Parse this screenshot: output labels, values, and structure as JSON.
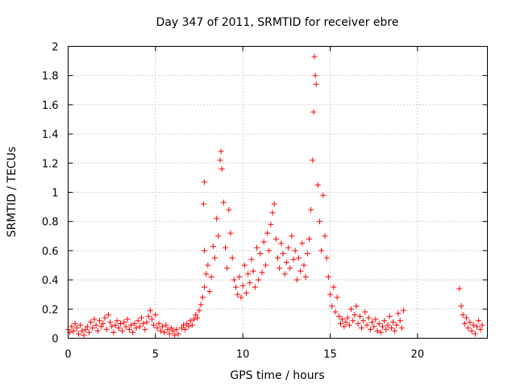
{
  "chart_data": {
    "type": "scatter",
    "title": "Day 347 of 2011, SRMTID for receiver ebre",
    "xlabel": "GPS time / hours",
    "ylabel": "SRMTID / TECUs",
    "xlim": [
      0,
      24
    ],
    "ylim": [
      0,
      2
    ],
    "xticks": [
      0,
      5,
      10,
      15,
      20
    ],
    "xtick_labels": [
      "0",
      "5",
      "10",
      "15",
      "20"
    ],
    "yticks": [
      0,
      0.2,
      0.4,
      0.6,
      0.8,
      1,
      1.2,
      1.4,
      1.6,
      1.8,
      2
    ],
    "ytick_labels": [
      "0",
      "0.2",
      "0.4",
      "0.6",
      "0.8",
      "1",
      "1.2",
      "1.4",
      "1.6",
      "1.8",
      "2"
    ],
    "grid": true,
    "marker": "plus",
    "series": [
      {
        "name": "SRMTID",
        "color": "#ff0000",
        "points": [
          [
            0.0,
            0.06
          ],
          [
            0.1,
            0.04
          ],
          [
            0.2,
            0.08
          ],
          [
            0.3,
            0.05
          ],
          [
            0.4,
            0.1
          ],
          [
            0.5,
            0.07
          ],
          [
            0.6,
            0.03
          ],
          [
            0.7,
            0.09
          ],
          [
            0.8,
            0.05
          ],
          [
            0.9,
            0.02
          ],
          [
            1.0,
            0.06
          ],
          [
            1.1,
            0.08
          ],
          [
            1.2,
            0.04
          ],
          [
            1.3,
            0.11
          ],
          [
            1.4,
            0.07
          ],
          [
            1.5,
            0.13
          ],
          [
            1.6,
            0.09
          ],
          [
            1.7,
            0.05
          ],
          [
            1.8,
            0.12
          ],
          [
            1.9,
            0.08
          ],
          [
            2.0,
            0.1
          ],
          [
            2.1,
            0.14
          ],
          [
            2.2,
            0.06
          ],
          [
            2.3,
            0.16
          ],
          [
            2.4,
            0.11
          ],
          [
            2.5,
            0.08
          ],
          [
            2.6,
            0.04
          ],
          [
            2.7,
            0.09
          ],
          [
            2.8,
            0.12
          ],
          [
            2.9,
            0.07
          ],
          [
            3.0,
            0.1
          ],
          [
            3.1,
            0.05
          ],
          [
            3.2,
            0.11
          ],
          [
            3.3,
            0.08
          ],
          [
            3.4,
            0.13
          ],
          [
            3.5,
            0.06
          ],
          [
            3.6,
            0.09
          ],
          [
            3.7,
            0.04
          ],
          [
            3.8,
            0.1
          ],
          [
            3.9,
            0.07
          ],
          [
            4.0,
            0.12
          ],
          [
            4.1,
            0.08
          ],
          [
            4.2,
            0.14
          ],
          [
            4.3,
            0.1
          ],
          [
            4.4,
            0.06
          ],
          [
            4.5,
            0.11
          ],
          [
            4.6,
            0.15
          ],
          [
            4.7,
            0.19
          ],
          [
            4.8,
            0.13
          ],
          [
            4.9,
            0.09
          ],
          [
            5.0,
            0.16
          ],
          [
            5.1,
            0.07
          ],
          [
            5.2,
            0.1
          ],
          [
            5.3,
            0.05
          ],
          [
            5.4,
            0.08
          ],
          [
            5.5,
            0.04
          ],
          [
            5.6,
            0.09
          ],
          [
            5.7,
            0.06
          ],
          [
            5.8,
            0.03
          ],
          [
            5.9,
            0.07
          ],
          [
            6.0,
            0.05
          ],
          [
            6.1,
            0.02
          ],
          [
            6.2,
            0.06
          ],
          [
            6.3,
            0.03
          ],
          [
            6.5,
            0.07
          ],
          [
            6.6,
            0.09
          ],
          [
            6.7,
            0.06
          ],
          [
            6.8,
            0.1
          ],
          [
            6.9,
            0.08
          ],
          [
            7.0,
            0.12
          ],
          [
            7.1,
            0.09
          ],
          [
            7.2,
            0.13
          ],
          [
            7.3,
            0.16
          ],
          [
            7.4,
            0.14
          ],
          [
            7.5,
            0.19
          ],
          [
            7.6,
            0.23
          ],
          [
            7.7,
            0.28
          ],
          [
            7.8,
            0.35
          ],
          [
            7.9,
            0.44
          ],
          [
            7.8,
            0.6
          ],
          [
            7.75,
            0.92
          ],
          [
            7.8,
            1.07
          ],
          [
            8.0,
            0.5
          ],
          [
            8.1,
            0.32
          ],
          [
            8.2,
            0.42
          ],
          [
            8.3,
            0.63
          ],
          [
            8.4,
            0.55
          ],
          [
            8.5,
            0.82
          ],
          [
            8.6,
            0.7
          ],
          [
            8.7,
            1.22
          ],
          [
            8.75,
            1.28
          ],
          [
            8.8,
            1.16
          ],
          [
            8.9,
            0.93
          ],
          [
            9.0,
            0.62
          ],
          [
            9.1,
            0.48
          ],
          [
            9.2,
            0.88
          ],
          [
            9.3,
            0.72
          ],
          [
            9.4,
            0.55
          ],
          [
            9.5,
            0.4
          ],
          [
            9.6,
            0.35
          ],
          [
            9.7,
            0.3
          ],
          [
            9.8,
            0.42
          ],
          [
            9.9,
            0.28
          ],
          [
            10.0,
            0.36
          ],
          [
            10.1,
            0.5
          ],
          [
            10.2,
            0.31
          ],
          [
            10.3,
            0.44
          ],
          [
            10.4,
            0.38
          ],
          [
            10.5,
            0.54
          ],
          [
            10.6,
            0.46
          ],
          [
            10.7,
            0.35
          ],
          [
            10.8,
            0.62
          ],
          [
            10.9,
            0.4
          ],
          [
            11.0,
            0.58
          ],
          [
            11.1,
            0.45
          ],
          [
            11.2,
            0.66
          ],
          [
            11.3,
            0.5
          ],
          [
            11.4,
            0.72
          ],
          [
            11.5,
            0.6
          ],
          [
            11.6,
            0.78
          ],
          [
            11.7,
            0.86
          ],
          [
            11.8,
            0.92
          ],
          [
            11.9,
            0.68
          ],
          [
            12.0,
            0.55
          ],
          [
            12.1,
            0.48
          ],
          [
            12.2,
            0.65
          ],
          [
            12.3,
            0.58
          ],
          [
            12.4,
            0.44
          ],
          [
            12.5,
            0.52
          ],
          [
            12.6,
            0.62
          ],
          [
            12.7,
            0.48
          ],
          [
            12.8,
            0.7
          ],
          [
            12.9,
            0.54
          ],
          [
            13.0,
            0.6
          ],
          [
            13.1,
            0.4
          ],
          [
            13.2,
            0.55
          ],
          [
            13.3,
            0.46
          ],
          [
            13.4,
            0.65
          ],
          [
            13.5,
            0.5
          ],
          [
            13.6,
            0.42
          ],
          [
            13.7,
            0.58
          ],
          [
            13.8,
            0.68
          ],
          [
            13.9,
            0.88
          ],
          [
            14.0,
            1.22
          ],
          [
            14.05,
            1.55
          ],
          [
            14.1,
            1.93
          ],
          [
            14.15,
            1.8
          ],
          [
            14.2,
            1.74
          ],
          [
            14.3,
            1.05
          ],
          [
            14.4,
            0.8
          ],
          [
            14.5,
            0.6
          ],
          [
            14.6,
            0.98
          ],
          [
            14.7,
            0.7
          ],
          [
            14.8,
            0.55
          ],
          [
            14.9,
            0.42
          ],
          [
            15.0,
            0.3
          ],
          [
            15.1,
            0.22
          ],
          [
            15.2,
            0.35
          ],
          [
            15.3,
            0.18
          ],
          [
            15.4,
            0.28
          ],
          [
            15.5,
            0.15
          ],
          [
            15.6,
            0.1
          ],
          [
            15.7,
            0.13
          ],
          [
            15.8,
            0.08
          ],
          [
            15.9,
            0.11
          ],
          [
            16.0,
            0.14
          ],
          [
            16.1,
            0.09
          ],
          [
            16.2,
            0.2
          ],
          [
            16.3,
            0.12
          ],
          [
            16.4,
            0.16
          ],
          [
            16.5,
            0.22
          ],
          [
            16.6,
            0.1
          ],
          [
            16.7,
            0.15
          ],
          [
            16.8,
            0.07
          ],
          [
            16.9,
            0.12
          ],
          [
            17.0,
            0.18
          ],
          [
            17.1,
            0.09
          ],
          [
            17.2,
            0.14
          ],
          [
            17.3,
            0.06
          ],
          [
            17.4,
            0.11
          ],
          [
            17.5,
            0.08
          ],
          [
            17.6,
            0.13
          ],
          [
            17.7,
            0.05
          ],
          [
            17.8,
            0.1
          ],
          [
            17.9,
            0.04
          ],
          [
            18.0,
            0.08
          ],
          [
            18.1,
            0.12
          ],
          [
            18.2,
            0.06
          ],
          [
            18.3,
            0.09
          ],
          [
            18.4,
            0.15
          ],
          [
            18.5,
            0.07
          ],
          [
            18.6,
            0.11
          ],
          [
            18.7,
            0.05
          ],
          [
            18.8,
            0.09
          ],
          [
            18.9,
            0.17
          ],
          [
            19.0,
            0.12
          ],
          [
            19.1,
            0.07
          ],
          [
            19.2,
            0.19
          ],
          [
            22.4,
            0.34
          ],
          [
            22.5,
            0.22
          ],
          [
            22.6,
            0.16
          ],
          [
            22.7,
            0.1
          ],
          [
            22.8,
            0.14
          ],
          [
            22.9,
            0.07
          ],
          [
            23.0,
            0.11
          ],
          [
            23.1,
            0.05
          ],
          [
            23.2,
            0.09
          ],
          [
            23.3,
            0.03
          ],
          [
            23.4,
            0.08
          ],
          [
            23.5,
            0.12
          ],
          [
            23.6,
            0.06
          ],
          [
            23.7,
            0.09
          ]
        ]
      }
    ]
  }
}
